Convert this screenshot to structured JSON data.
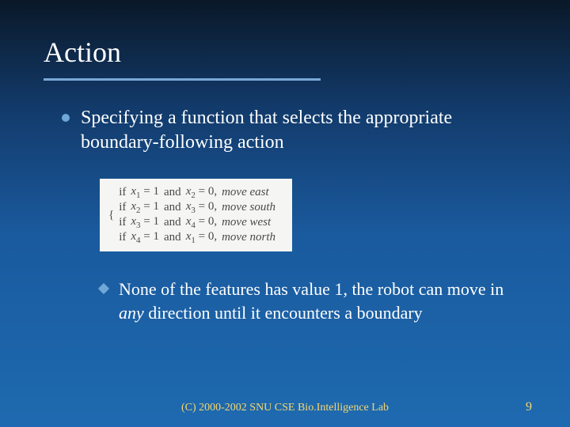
{
  "title": "Action",
  "bullet": "Specifying a function that selects the appropriate boundary-following action",
  "rules": [
    {
      "c1v": "x",
      "c1s": "1",
      "c1r": "= 1",
      "c2v": "x",
      "c2s": "2",
      "c2r": "= 0,",
      "action": "move east"
    },
    {
      "c1v": "x",
      "c1s": "2",
      "c1r": "= 1",
      "c2v": "x",
      "c2s": "3",
      "c2r": "= 0,",
      "action": "move south"
    },
    {
      "c1v": "x",
      "c1s": "3",
      "c1r": "= 1",
      "c2v": "x",
      "c2s": "4",
      "c2r": "= 0,",
      "action": "move west"
    },
    {
      "c1v": "x",
      "c1s": "4",
      "c1r": "= 1",
      "c2v": "x",
      "c2s": "1",
      "c2r": "= 0,",
      "action": "move north"
    }
  ],
  "subbullet_pre": "None of the features has value 1, the robot can move in ",
  "subbullet_em": "any",
  "subbullet_post": " direction until it encounters a boundary",
  "footer": "(C) 2000-2002 SNU CSE Bio.Intelligence Lab",
  "page": "9",
  "colors": {
    "accent": "#6fa8d8",
    "footer": "#f5d76e",
    "box_bg": "#f5f5f4",
    "box_text": "#4a4a4a"
  }
}
